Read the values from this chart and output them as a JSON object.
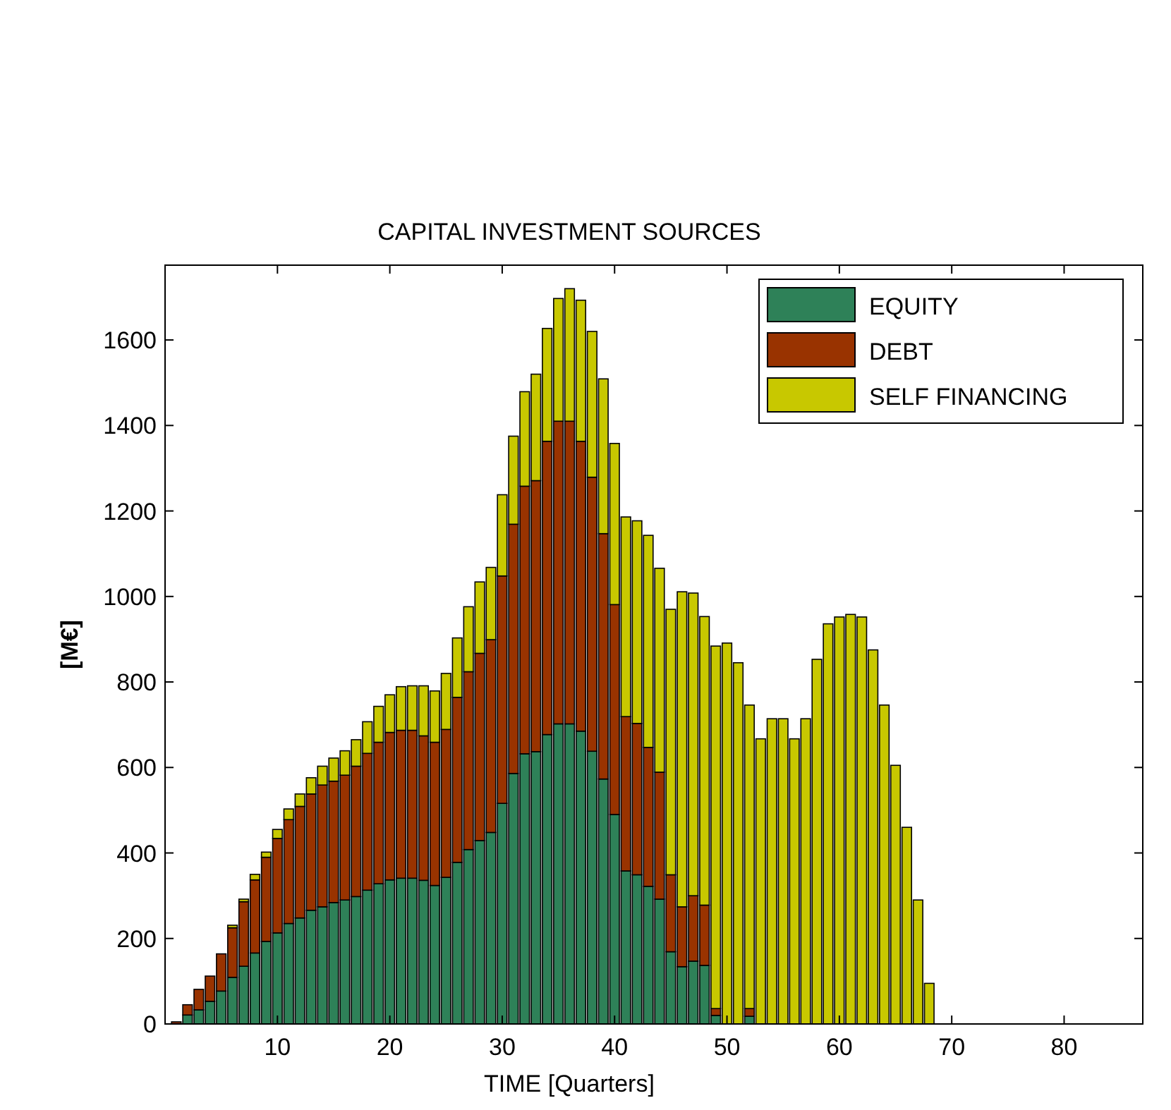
{
  "chart_data": {
    "type": "bar",
    "title": "CAPITAL INVESTMENT SOURCES",
    "xlabel": "TIME [Quarters]",
    "ylabel": "[M€]",
    "stacked": true,
    "x": [
      1,
      2,
      3,
      4,
      5,
      6,
      7,
      8,
      9,
      10,
      11,
      12,
      13,
      14,
      15,
      16,
      17,
      18,
      19,
      20,
      21,
      22,
      23,
      24,
      25,
      26,
      27,
      28,
      29,
      30,
      31,
      32,
      33,
      34,
      35,
      36,
      37,
      38,
      39,
      40,
      41,
      42,
      43,
      44,
      45,
      46,
      47,
      48,
      49,
      50,
      51,
      52,
      53,
      54,
      55,
      56,
      57,
      58,
      59,
      60,
      61,
      62,
      63,
      64,
      65,
      66,
      67,
      68
    ],
    "series": [
      {
        "name": "EQUITY",
        "color": "#2e8158",
        "values": [
          null,
          21,
          33,
          53,
          77,
          109,
          135,
          166,
          193,
          213,
          235,
          248,
          266,
          274,
          284,
          290,
          298,
          313,
          328,
          337,
          341,
          341,
          336,
          324,
          343,
          378,
          408,
          429,
          448,
          516,
          586,
          632,
          637,
          677,
          702,
          702,
          685,
          638,
          573,
          490,
          358,
          349,
          322,
          292,
          169,
          134,
          147,
          137,
          20,
          0,
          0,
          18,
          0,
          0,
          0,
          0,
          0,
          0,
          0,
          0,
          0,
          0,
          0,
          0,
          0,
          0,
          0,
          0
        ]
      },
      {
        "name": "DEBT",
        "color": "#993300",
        "values": [
          5,
          24,
          48,
          59,
          87,
          116,
          151,
          171,
          197,
          221,
          243,
          261,
          272,
          285,
          284,
          292,
          305,
          320,
          331,
          345,
          346,
          346,
          338,
          335,
          346,
          386,
          416,
          438,
          451,
          532,
          583,
          626,
          634,
          686,
          708,
          708,
          678,
          641,
          574,
          491,
          361,
          354,
          325,
          297,
          180,
          140,
          153,
          141,
          16,
          0,
          0,
          18,
          0,
          0,
          0,
          0,
          0,
          0,
          0,
          0,
          0,
          0,
          0,
          0,
          0,
          0,
          0,
          0
        ]
      },
      {
        "name": "SELF FINANCING",
        "color": "#c8c800",
        "values": [
          0,
          null,
          0,
          0,
          0,
          6,
          6,
          13,
          12,
          21,
          25,
          29,
          38,
          44,
          54,
          57,
          62,
          74,
          84,
          88,
          102,
          104,
          117,
          120,
          131,
          139,
          152,
          167,
          169,
          190,
          206,
          221,
          249,
          264,
          287,
          310,
          330,
          341,
          362,
          377,
          467,
          474,
          496,
          477,
          621,
          737,
          708,
          675,
          848,
          891,
          845,
          710,
          667,
          714,
          714,
          667,
          714,
          853,
          936,
          952,
          958,
          952,
          875,
          746,
          605,
          460,
          290,
          95
        ]
      }
    ],
    "xlim": [
      0,
      87
    ],
    "xticks": [
      10,
      20,
      30,
      40,
      50,
      60,
      70,
      80
    ],
    "ylim": [
      0,
      1775
    ],
    "yticks": [
      0,
      200,
      400,
      600,
      800,
      1000,
      1200,
      1400,
      1600
    ],
    "grid": false,
    "legend": "top right"
  }
}
